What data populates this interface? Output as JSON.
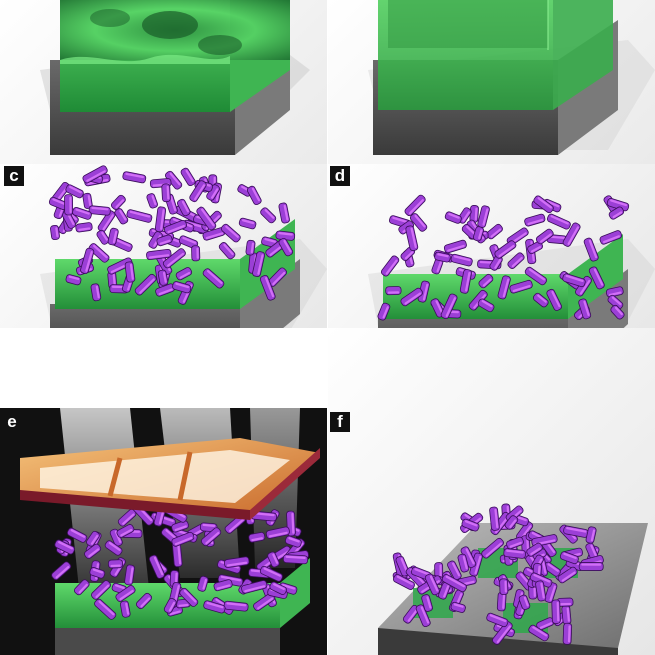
{
  "panels": [
    {
      "id": "a",
      "label": "",
      "state": "rough polymer film on substrate"
    },
    {
      "id": "b",
      "label": "",
      "state": "smooth polymer film on substrate"
    },
    {
      "id": "c",
      "label": "c",
      "state": "dense rod layer on film"
    },
    {
      "id": "d",
      "label": "d",
      "state": "sparser rod layer on film"
    },
    {
      "id": "e",
      "label": "e",
      "state": "exposure through mask"
    },
    {
      "id": "f",
      "label": "f",
      "state": "patterned rod islands"
    }
  ],
  "colors": {
    "film_green": "#2ea84a",
    "film_green_light": "#6fe07a",
    "substrate_grey": "#5c5c5c",
    "rod_purple": "#9b3fd6",
    "rod_highlight": "#e07cff",
    "mask_frame": "#d9863f",
    "background_dark": "#111111"
  },
  "icons": [
    "rod-cluster",
    "mask-frame",
    "light-beams"
  ]
}
